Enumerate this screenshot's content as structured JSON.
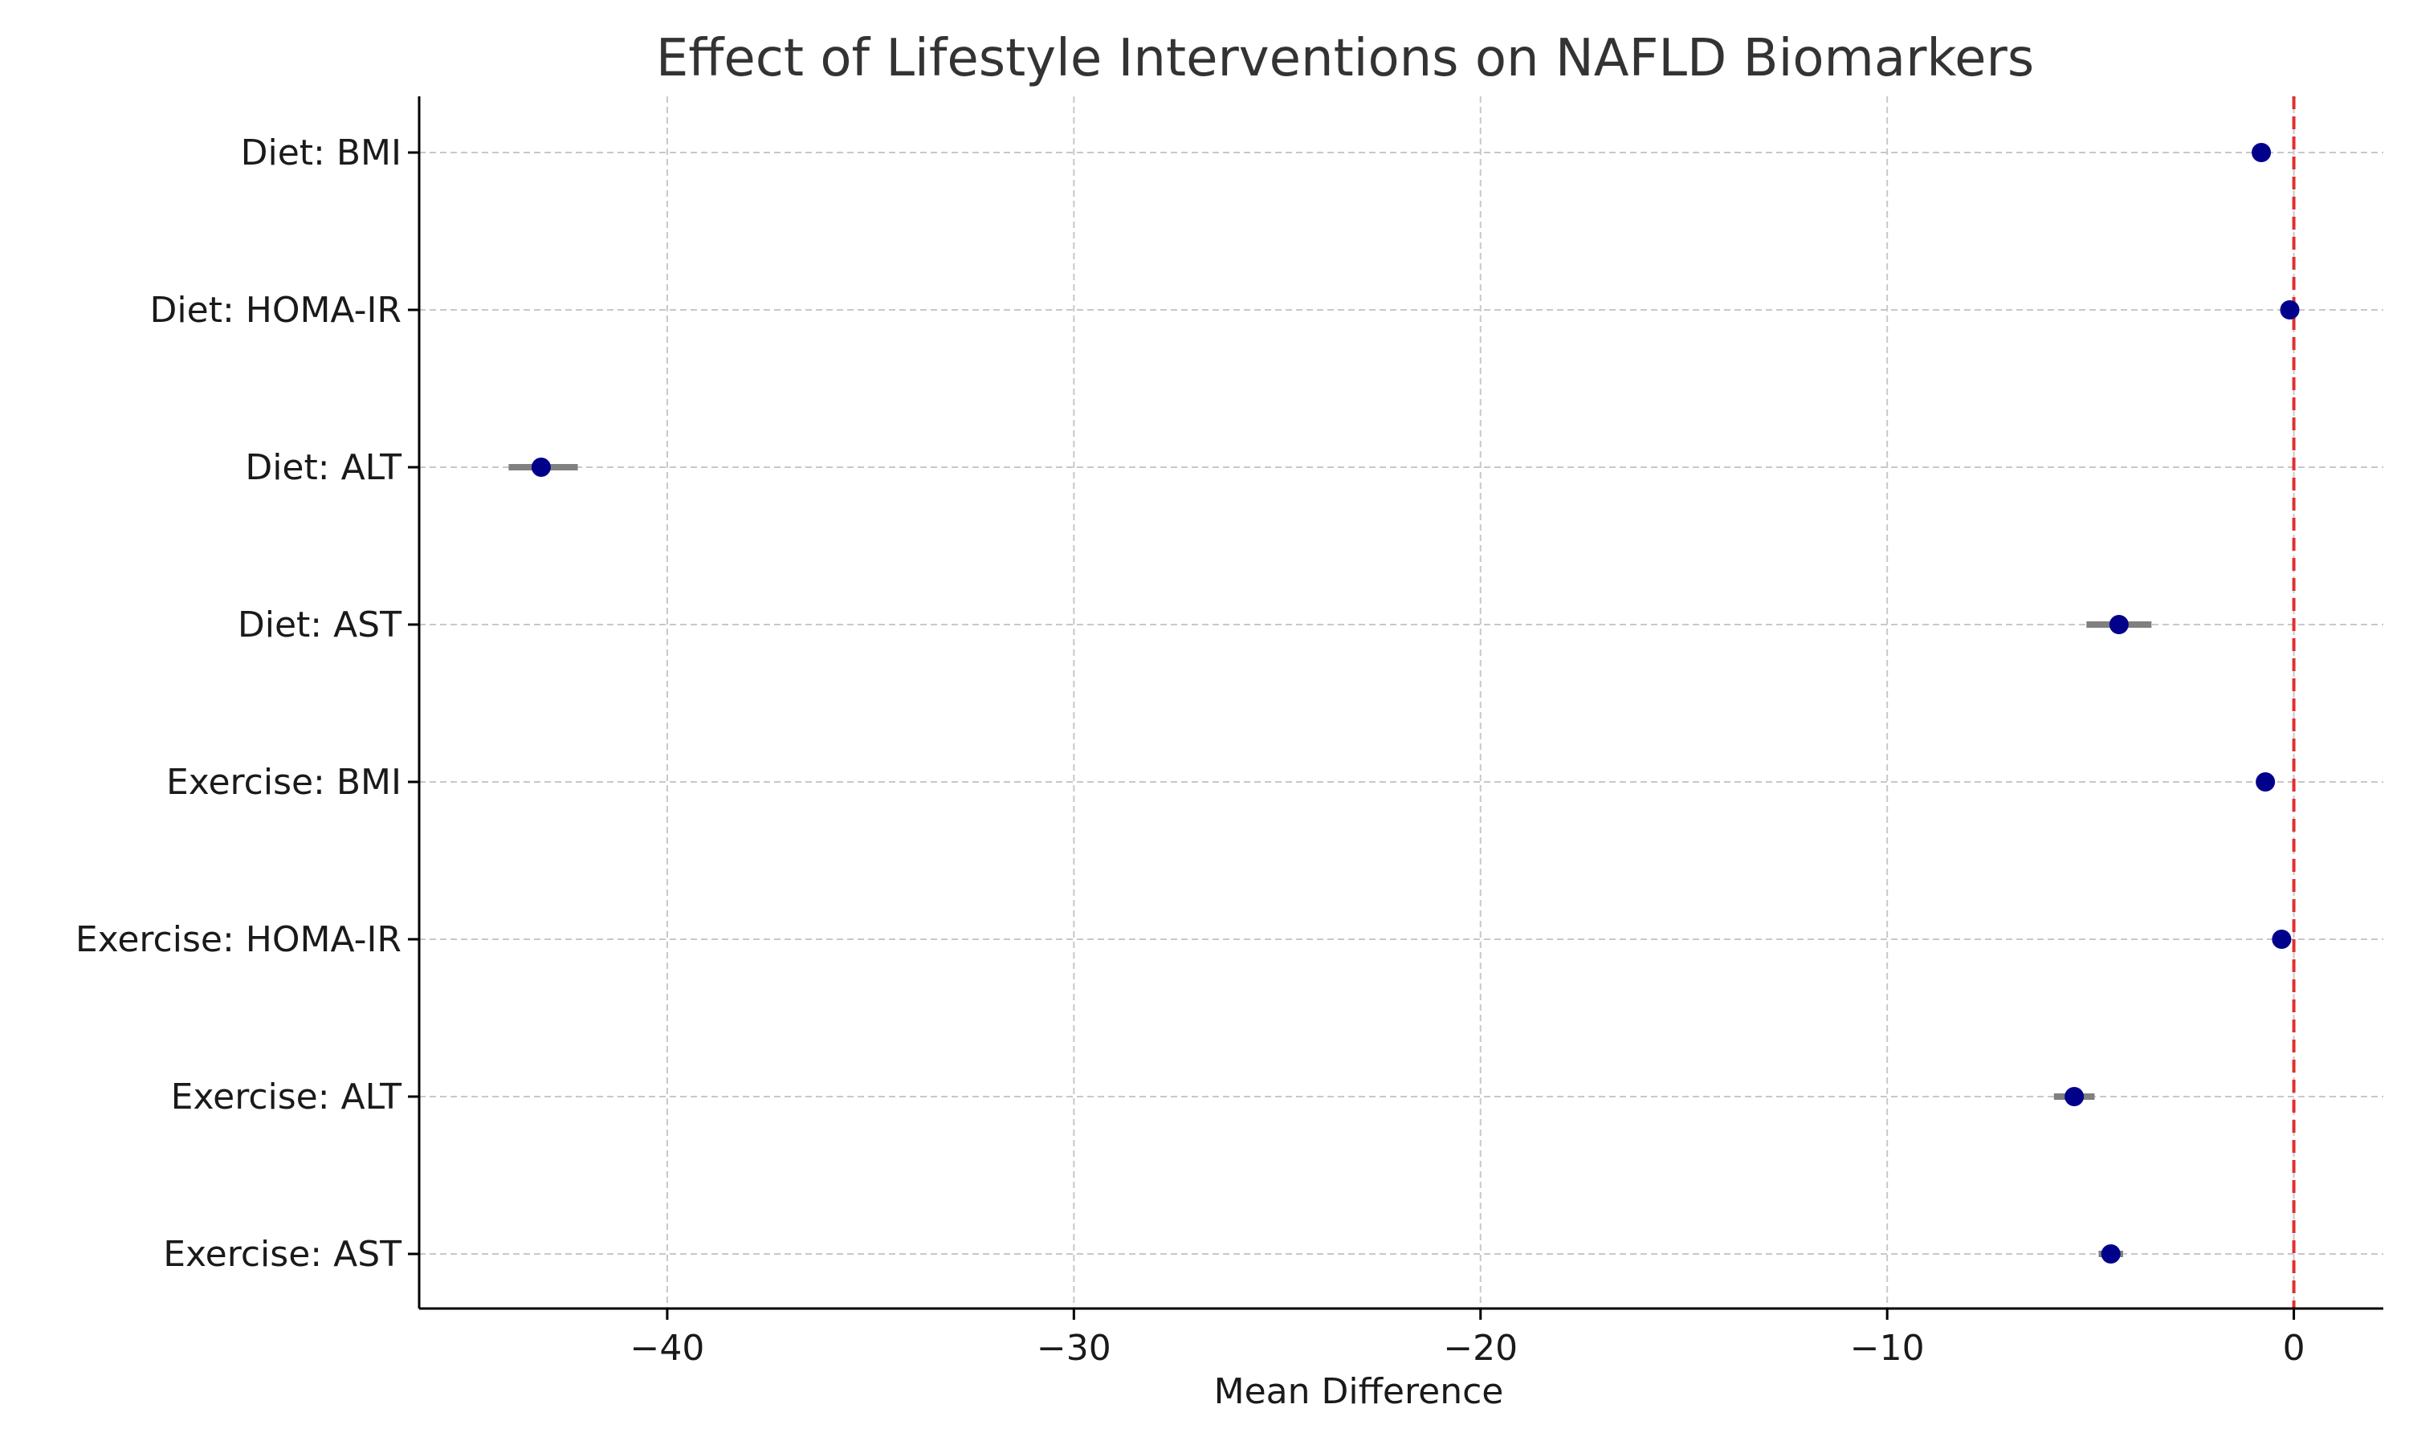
{
  "chart_data": {
    "type": "scatter",
    "title": "Effect of Lifestyle Interventions on NAFLD Biomarkers",
    "xlabel": "Mean Difference",
    "ylabel": "",
    "xlim": [
      -46.1,
      2.2
    ],
    "xticks": [
      -40,
      -30,
      -20,
      -10,
      0
    ],
    "xtick_labels": [
      "−40",
      "−30",
      "−20",
      "−10",
      "0"
    ],
    "categories": [
      "Diet: BMI",
      "Diet: HOMA-IR",
      "Diet: ALT",
      "Diet: AST",
      "Exercise: BMI",
      "Exercise: HOMA-IR",
      "Exercise: ALT",
      "Exercise: AST"
    ],
    "values": [
      -0.8,
      -0.1,
      -43.1,
      -4.3,
      -0.7,
      -0.3,
      -5.4,
      -4.5
    ],
    "ci_lower": [
      -0.9,
      -0.2,
      -43.9,
      -5.1,
      -0.8,
      -0.4,
      -5.9,
      -4.8
    ],
    "ci_upper": [
      -0.7,
      0.0,
      -42.2,
      -3.5,
      -0.6,
      -0.2,
      -4.9,
      -4.2
    ],
    "reference_line": 0,
    "grid": true,
    "colors": {
      "point": "#00008b",
      "errorbar": "#808080",
      "reference": "#e03030",
      "grid": "#c8c8c8"
    }
  }
}
